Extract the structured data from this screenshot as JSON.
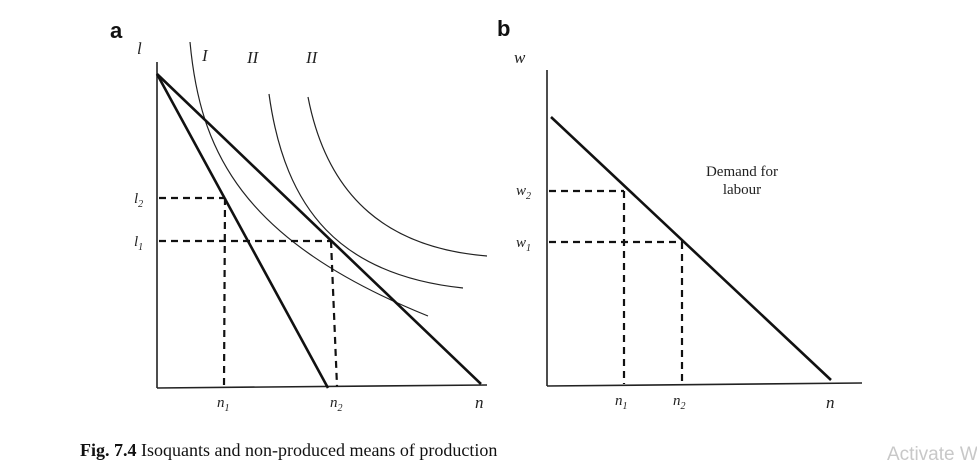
{
  "panel_a": {
    "letter": "a",
    "y_var": "l",
    "x_var": "n",
    "y_ticks": {
      "l2": "l",
      "l2_sub": "2",
      "l1": "l",
      "l1_sub": "1"
    },
    "x_ticks": {
      "n1": "n",
      "n1_sub": "1",
      "n2": "n",
      "n2_sub": "2"
    },
    "curve_labels": [
      "I",
      "II",
      "II"
    ]
  },
  "panel_b": {
    "letter": "b",
    "y_var": "w",
    "x_var": "n",
    "y_ticks": {
      "w2": "w",
      "w2_sub": "2",
      "w1": "w",
      "w1_sub": "1"
    },
    "x_ticks": {
      "n1": "n",
      "n1_sub": "1",
      "n2": "n",
      "n2_sub": "2"
    },
    "demand_label_line1": "Demand for",
    "demand_label_line2": "labour"
  },
  "caption": {
    "figure_number": "Fig. 7.4",
    "text": "Isoquants and non-produced means of production"
  },
  "watermark": "Activate W",
  "colors": {
    "ink": "#111111",
    "watermark": "#c8c8c8"
  }
}
